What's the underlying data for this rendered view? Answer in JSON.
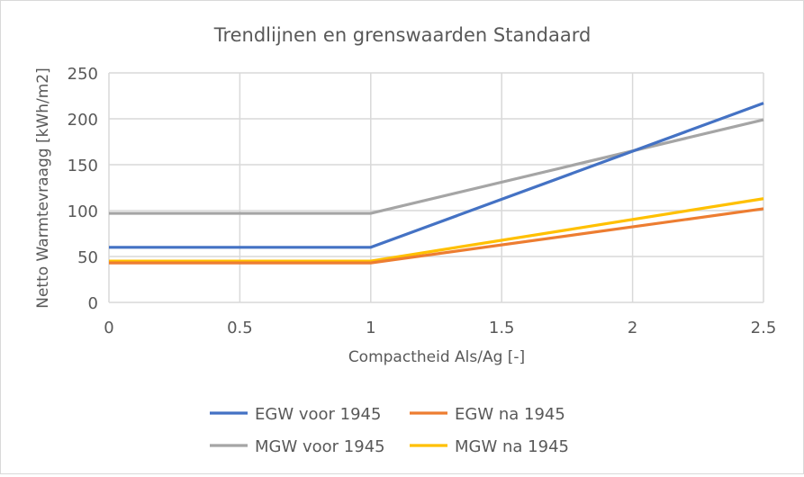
{
  "chart_data": {
    "type": "line",
    "title": "Trendlijnen en grenswaarden Standaard",
    "xlabel": "Compactheid Als/Ag [-]",
    "ylabel": "Netto Warmtevraagg [kWh/m2]",
    "xlim": [
      0,
      2.5
    ],
    "ylim": [
      0,
      250
    ],
    "xticks": [
      "0",
      "0.5",
      "1",
      "1.5",
      "2",
      "2.5"
    ],
    "xtick_values": [
      0,
      0.5,
      1,
      1.5,
      2,
      2.5
    ],
    "yticks": [
      "0",
      "50",
      "100",
      "150",
      "200",
      "250"
    ],
    "ytick_values": [
      0,
      50,
      100,
      150,
      200,
      250
    ],
    "grid": true,
    "legend_position": "bottom",
    "x": [
      0,
      1,
      2.5
    ],
    "series": [
      {
        "name": "EGW voor 1945",
        "color": "#4472c4",
        "values": [
          60,
          60,
          217
        ]
      },
      {
        "name": "EGW na 1945",
        "color": "#ed7d31",
        "values": [
          43,
          43,
          102
        ]
      },
      {
        "name": "MGW voor 1945",
        "color": "#a5a5a5",
        "values": [
          97,
          97,
          199
        ]
      },
      {
        "name": "MGW na 1945",
        "color": "#ffc000",
        "values": [
          45,
          45,
          113
        ]
      }
    ]
  }
}
